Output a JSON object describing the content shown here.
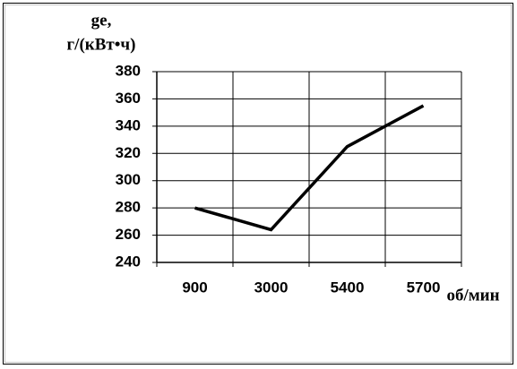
{
  "chart_data": {
    "type": "line",
    "y_label": [
      "ge,",
      "г/(кВт•ч)"
    ],
    "x_label": "об/мин",
    "categories": [
      "900",
      "3000",
      "5400",
      "5700"
    ],
    "values": [
      280,
      264,
      325,
      355
    ],
    "color": "#000000",
    "ylim": [
      240,
      380
    ],
    "yticks": [
      240,
      260,
      280,
      300,
      320,
      340,
      360,
      380
    ],
    "grid": true
  }
}
